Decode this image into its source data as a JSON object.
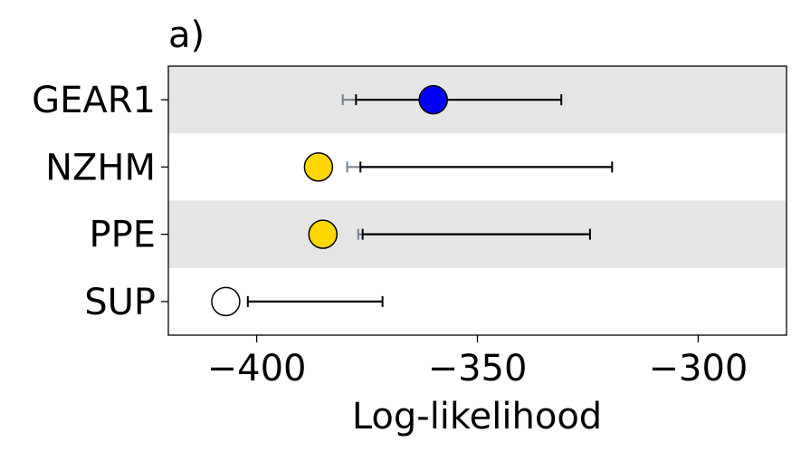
{
  "chart_data": {
    "type": "scatter",
    "panel_label": "a)",
    "title": "",
    "xlabel": "Log-likelihood",
    "ylabel": "",
    "xlim": [
      -420,
      -280
    ],
    "xticks": [
      -400,
      -350,
      -300
    ],
    "xtick_labels": [
      "−400",
      "−350",
      "−300"
    ],
    "grid": false,
    "legend": "none",
    "categories": [
      "GEAR1",
      "NZHM",
      "PPE",
      "SUP"
    ],
    "points": [
      {
        "label": "GEAR1",
        "value": -360.0,
        "color": "#0000ff",
        "ci_low": -377.5,
        "ci_high": -331.0,
        "alt_ci_low": -380.5,
        "shaded": true
      },
      {
        "label": "NZHM",
        "value": -386.0,
        "color": "#ffd700",
        "ci_low": -376.5,
        "ci_high": -319.5,
        "alt_ci_low": -379.5,
        "shaded": false
      },
      {
        "label": "PPE",
        "value": -385.0,
        "color": "#ffd700",
        "ci_low": -376.0,
        "ci_high": -324.5,
        "alt_ci_low": -377.0,
        "shaded": true
      },
      {
        "label": "SUP",
        "value": -407.0,
        "color": "#ffffff",
        "ci_low": -402.0,
        "ci_high": -371.5,
        "alt_ci_low": null,
        "shaded": false
      }
    ],
    "colors": {
      "ci_main": "#000000",
      "ci_alt": "#708090",
      "band": "#e5e5e5",
      "marker_edge": "#000000"
    }
  }
}
